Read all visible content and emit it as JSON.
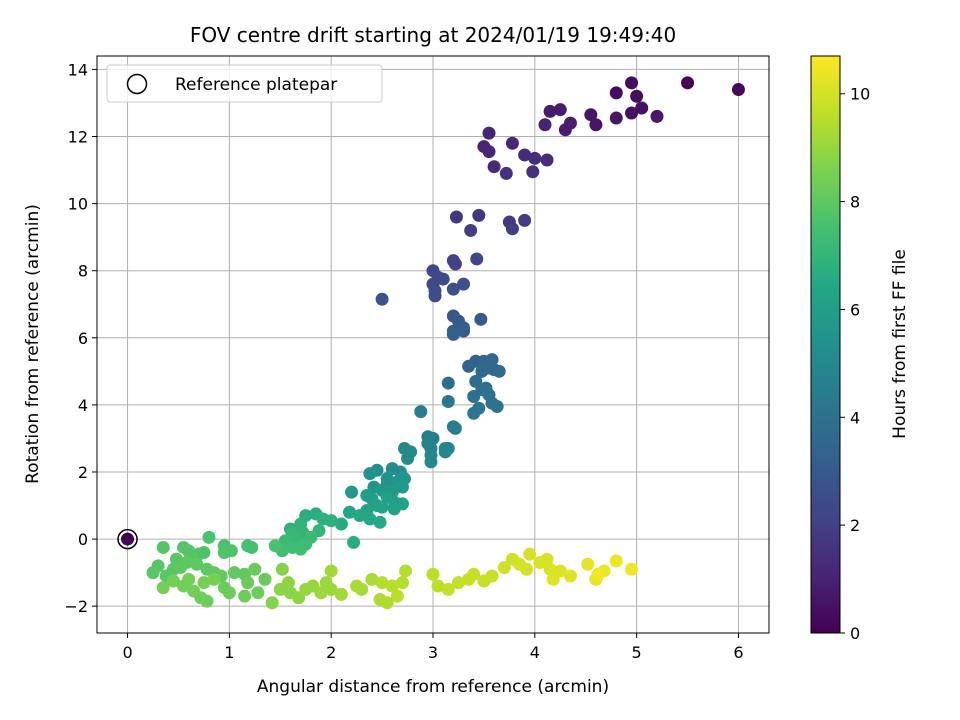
{
  "chart_data": {
    "type": "scatter",
    "title": "FOV centre drift starting at 2024/01/19 19:49:40",
    "xlabel": "Angular distance from reference (arcmin)",
    "ylabel": "Rotation from reference (arcmin)",
    "xlim": [
      -0.3,
      6.3
    ],
    "ylim": [
      -2.8,
      14.4
    ],
    "xticks": [
      0,
      1,
      2,
      3,
      4,
      5,
      6
    ],
    "yticks": [
      -2,
      0,
      2,
      4,
      6,
      8,
      10,
      12,
      14
    ],
    "grid": true,
    "legend": {
      "position": "top-left",
      "entries": [
        "Reference platepar"
      ]
    },
    "reference_point": {
      "x": 0,
      "y": 0
    },
    "colorbar": {
      "label": "Hours from first FF file",
      "range": [
        0,
        10.7
      ],
      "ticks": [
        0,
        2,
        4,
        6,
        8,
        10
      ],
      "colormap": "viridis"
    },
    "points": [
      [
        5.5,
        13.6,
        0.1
      ],
      [
        6.0,
        13.4,
        0.2
      ],
      [
        4.95,
        13.6,
        0.3
      ],
      [
        4.8,
        13.3,
        0.4
      ],
      [
        5.0,
        13.2,
        0.4
      ],
      [
        5.05,
        12.85,
        0.5
      ],
      [
        4.95,
        12.7,
        0.5
      ],
      [
        4.55,
        12.65,
        0.6
      ],
      [
        4.6,
        12.35,
        0.6
      ],
      [
        4.8,
        12.55,
        0.7
      ],
      [
        5.2,
        12.6,
        0.7
      ],
      [
        4.25,
        12.8,
        0.8
      ],
      [
        4.15,
        12.75,
        0.8
      ],
      [
        4.35,
        12.4,
        0.9
      ],
      [
        4.3,
        12.2,
        0.9
      ],
      [
        4.1,
        12.35,
        1.0
      ],
      [
        3.55,
        12.1,
        1.1
      ],
      [
        3.5,
        11.7,
        1.1
      ],
      [
        3.55,
        11.55,
        1.2
      ],
      [
        3.78,
        11.8,
        1.2
      ],
      [
        3.9,
        11.45,
        1.3
      ],
      [
        3.6,
        11.1,
        1.3
      ],
      [
        4.0,
        11.35,
        1.4
      ],
      [
        4.12,
        11.3,
        1.4
      ],
      [
        3.72,
        10.9,
        1.5
      ],
      [
        3.98,
        10.95,
        1.5
      ],
      [
        3.23,
        9.6,
        1.7
      ],
      [
        3.45,
        9.65,
        1.7
      ],
      [
        3.75,
        9.45,
        1.8
      ],
      [
        3.9,
        9.5,
        1.8
      ],
      [
        3.78,
        9.25,
        1.9
      ],
      [
        3.37,
        9.2,
        1.9
      ],
      [
        3.2,
        8.3,
        2.1
      ],
      [
        3.22,
        8.2,
        2.1
      ],
      [
        3.43,
        8.35,
        2.2
      ],
      [
        3.0,
        8.0,
        2.3
      ],
      [
        3.05,
        7.8,
        2.3
      ],
      [
        3.1,
        7.75,
        2.4
      ],
      [
        3.0,
        7.6,
        2.4
      ],
      [
        3.02,
        7.4,
        2.5
      ],
      [
        3.02,
        7.25,
        2.5
      ],
      [
        3.3,
        7.6,
        2.6
      ],
      [
        3.2,
        7.45,
        2.6
      ],
      [
        2.5,
        7.15,
        2.7
      ],
      [
        3.2,
        6.65,
        2.9
      ],
      [
        3.25,
        6.5,
        3.0
      ],
      [
        3.47,
        6.55,
        3.0
      ],
      [
        3.3,
        6.3,
        3.1
      ],
      [
        3.2,
        6.2,
        3.1
      ],
      [
        3.3,
        6.2,
        3.2
      ],
      [
        3.2,
        6.1,
        3.2
      ],
      [
        3.35,
        5.15,
        3.4
      ],
      [
        3.42,
        5.3,
        3.4
      ],
      [
        3.5,
        5.3,
        3.5
      ],
      [
        3.58,
        5.35,
        3.5
      ],
      [
        3.55,
        5.1,
        3.6
      ],
      [
        3.6,
        5.05,
        3.6
      ],
      [
        3.65,
        5.0,
        3.7
      ],
      [
        3.48,
        5.0,
        3.7
      ],
      [
        3.15,
        4.65,
        3.8
      ],
      [
        3.42,
        4.7,
        3.8
      ],
      [
        3.48,
        4.45,
        3.9
      ],
      [
        3.52,
        4.5,
        3.9
      ],
      [
        3.55,
        4.3,
        4.0
      ],
      [
        3.4,
        4.25,
        4.0
      ],
      [
        3.58,
        4.05,
        4.1
      ],
      [
        3.63,
        3.95,
        4.1
      ],
      [
        3.45,
        3.9,
        4.2
      ],
      [
        3.4,
        3.75,
        4.2
      ],
      [
        3.15,
        4.1,
        4.3
      ],
      [
        3.2,
        3.35,
        4.4
      ],
      [
        3.22,
        3.3,
        4.4
      ],
      [
        2.88,
        3.8,
        4.5
      ],
      [
        2.95,
        3.05,
        4.6
      ],
      [
        3.0,
        3.0,
        4.6
      ],
      [
        2.95,
        2.85,
        4.7
      ],
      [
        2.98,
        2.7,
        4.7
      ],
      [
        3.12,
        2.7,
        4.8
      ],
      [
        3.15,
        2.7,
        4.8
      ],
      [
        3.12,
        2.6,
        4.9
      ],
      [
        2.98,
        2.5,
        4.9
      ],
      [
        2.98,
        2.3,
        5.0
      ],
      [
        2.72,
        2.7,
        5.0
      ],
      [
        2.78,
        2.6,
        5.1
      ],
      [
        2.75,
        2.4,
        5.1
      ],
      [
        2.6,
        2.1,
        5.2
      ],
      [
        2.68,
        2.0,
        5.3
      ],
      [
        2.45,
        2.05,
        5.3
      ],
      [
        2.38,
        1.95,
        5.4
      ],
      [
        2.55,
        1.8,
        5.4
      ],
      [
        2.55,
        1.65,
        5.5
      ],
      [
        2.65,
        1.7,
        5.5
      ],
      [
        2.72,
        1.8,
        5.6
      ],
      [
        2.42,
        1.55,
        5.6
      ],
      [
        2.5,
        1.45,
        5.7
      ],
      [
        2.7,
        1.55,
        5.7
      ],
      [
        2.6,
        1.4,
        5.8
      ],
      [
        2.2,
        1.4,
        5.8
      ],
      [
        2.35,
        1.3,
        5.9
      ],
      [
        2.4,
        1.2,
        5.9
      ],
      [
        2.55,
        1.25,
        6.0
      ],
      [
        2.62,
        1.1,
        6.0
      ],
      [
        2.7,
        1.05,
        6.1
      ],
      [
        2.45,
        1.0,
        6.1
      ],
      [
        2.62,
        0.9,
        6.2
      ],
      [
        2.5,
        0.95,
        6.2
      ],
      [
        2.35,
        0.85,
        6.3
      ],
      [
        2.18,
        0.8,
        6.3
      ],
      [
        2.28,
        0.7,
        6.4
      ],
      [
        2.38,
        0.6,
        6.4
      ],
      [
        2.48,
        0.5,
        6.5
      ],
      [
        2.1,
        0.45,
        6.5
      ],
      [
        2.22,
        -0.1,
        6.6
      ],
      [
        1.75,
        0.7,
        6.7
      ],
      [
        1.85,
        0.75,
        6.7
      ],
      [
        1.92,
        0.6,
        6.8
      ],
      [
        2.0,
        0.55,
        6.8
      ],
      [
        1.7,
        0.45,
        6.9
      ],
      [
        1.6,
        0.3,
        6.9
      ],
      [
        1.72,
        0.2,
        7.0
      ],
      [
        1.88,
        0.25,
        7.0
      ],
      [
        1.62,
        0.15,
        7.1
      ],
      [
        1.65,
        0.0,
        7.1
      ],
      [
        1.8,
        0.05,
        7.2
      ],
      [
        1.55,
        -0.05,
        7.2
      ],
      [
        1.75,
        -0.15,
        7.3
      ],
      [
        1.62,
        -0.25,
        7.3
      ],
      [
        1.7,
        -0.3,
        7.4
      ],
      [
        1.52,
        -0.35,
        7.4
      ],
      [
        1.18,
        -0.2,
        7.5
      ],
      [
        1.22,
        -0.25,
        7.5
      ],
      [
        1.45,
        -0.2,
        7.6
      ],
      [
        0.8,
        0.05,
        7.6
      ],
      [
        0.95,
        -0.2,
        7.6
      ],
      [
        1.02,
        -0.35,
        7.7
      ],
      [
        0.95,
        -0.4,
        7.7
      ],
      [
        0.75,
        -0.4,
        7.7
      ],
      [
        0.7,
        -0.45,
        7.7
      ],
      [
        0.6,
        -0.35,
        7.8
      ],
      [
        0.55,
        -0.25,
        7.8
      ],
      [
        0.62,
        -0.5,
        7.8
      ],
      [
        0.35,
        -0.25,
        7.8
      ],
      [
        0.3,
        -0.8,
        7.8
      ],
      [
        0.48,
        -0.6,
        7.9
      ],
      [
        0.25,
        -1.0,
        7.9
      ],
      [
        0.38,
        -1.1,
        7.9
      ],
      [
        0.45,
        -0.9,
        7.9
      ],
      [
        0.52,
        -0.85,
        8.0
      ],
      [
        0.58,
        -0.7,
        8.0
      ],
      [
        0.68,
        -0.75,
        8.0
      ],
      [
        0.78,
        -0.9,
        8.0
      ],
      [
        0.85,
        -1.0,
        8.1
      ],
      [
        0.92,
        -1.1,
        8.1
      ],
      [
        1.05,
        -1.0,
        8.1
      ],
      [
        1.15,
        -1.05,
        8.1
      ],
      [
        1.25,
        -0.9,
        8.2
      ],
      [
        1.35,
        -1.2,
        8.2
      ],
      [
        1.18,
        -1.3,
        8.2
      ],
      [
        0.95,
        -1.45,
        8.2
      ],
      [
        1.0,
        -1.6,
        8.3
      ],
      [
        1.15,
        -1.7,
        8.3
      ],
      [
        1.28,
        -1.6,
        8.3
      ],
      [
        0.78,
        -1.85,
        8.3
      ],
      [
        0.72,
        -1.75,
        8.3
      ],
      [
        0.65,
        -1.55,
        8.4
      ],
      [
        0.55,
        -1.4,
        8.4
      ],
      [
        0.45,
        -1.25,
        8.4
      ],
      [
        0.35,
        -1.45,
        8.4
      ],
      [
        0.6,
        -1.2,
        8.4
      ],
      [
        0.75,
        -1.3,
        8.5
      ],
      [
        0.85,
        -1.2,
        8.5
      ],
      [
        1.42,
        -1.9,
        8.7
      ],
      [
        1.52,
        -0.9,
        8.7
      ],
      [
        1.5,
        -1.5,
        8.8
      ],
      [
        1.6,
        -1.6,
        8.8
      ],
      [
        1.68,
        -1.75,
        8.9
      ],
      [
        1.58,
        -1.3,
        8.9
      ],
      [
        1.75,
        -1.5,
        9.0
      ],
      [
        1.82,
        -1.4,
        9.0
      ],
      [
        1.9,
        -1.6,
        9.1
      ],
      [
        1.95,
        -1.3,
        9.1
      ],
      [
        2.0,
        -1.5,
        9.1
      ],
      [
        2.1,
        -1.65,
        9.2
      ],
      [
        2.0,
        -0.95,
        9.2
      ],
      [
        2.25,
        -1.4,
        9.3
      ],
      [
        2.3,
        -1.5,
        9.3
      ],
      [
        2.4,
        -1.2,
        9.3
      ],
      [
        2.48,
        -1.8,
        9.4
      ],
      [
        2.55,
        -1.9,
        9.4
      ],
      [
        2.6,
        -1.4,
        9.5
      ],
      [
        2.5,
        -1.3,
        9.5
      ],
      [
        2.7,
        -1.3,
        9.5
      ],
      [
        2.73,
        -0.95,
        9.5
      ],
      [
        2.65,
        -1.7,
        9.6
      ],
      [
        3.0,
        -1.05,
        9.6
      ],
      [
        3.05,
        -1.4,
        9.6
      ],
      [
        3.15,
        -1.5,
        9.7
      ],
      [
        3.25,
        -1.3,
        9.7
      ],
      [
        3.35,
        -1.2,
        9.7
      ],
      [
        3.4,
        -1.05,
        9.8
      ],
      [
        3.5,
        -1.25,
        9.8
      ],
      [
        3.58,
        -1.1,
        9.8
      ],
      [
        3.7,
        -0.85,
        9.9
      ],
      [
        3.78,
        -0.6,
        9.9
      ],
      [
        3.85,
        -0.75,
        10.0
      ],
      [
        3.92,
        -0.9,
        10.0
      ],
      [
        3.95,
        -0.45,
        10.0
      ],
      [
        4.05,
        -0.7,
        10.1
      ],
      [
        4.12,
        -0.6,
        10.1
      ],
      [
        4.15,
        -0.9,
        10.1
      ],
      [
        4.18,
        -1.2,
        10.2
      ],
      [
        4.25,
        -0.95,
        10.2
      ],
      [
        4.35,
        -1.1,
        10.2
      ],
      [
        4.52,
        -0.75,
        10.3
      ],
      [
        4.6,
        -1.2,
        10.3
      ],
      [
        4.68,
        -0.95,
        10.4
      ],
      [
        4.8,
        -0.65,
        10.4
      ],
      [
        4.95,
        -0.9,
        10.5
      ],
      [
        4.62,
        -1.05,
        10.5
      ]
    ]
  }
}
